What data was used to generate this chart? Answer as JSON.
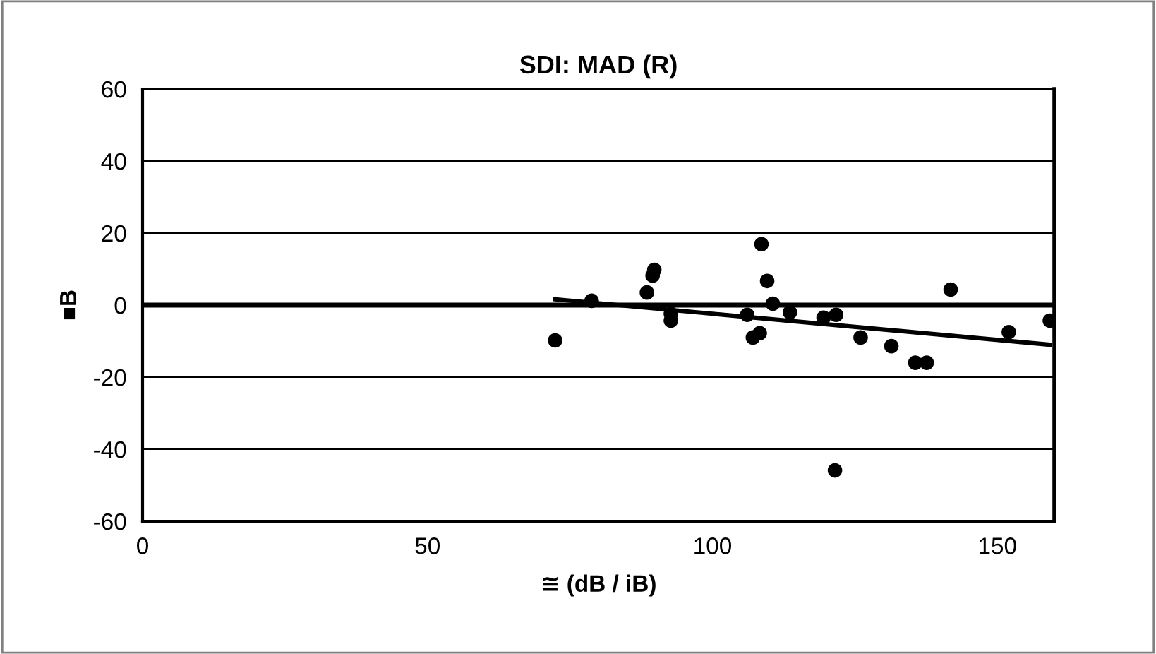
{
  "chart_data": {
    "type": "scatter",
    "title": "SDI: MAD (R)",
    "xlabel": "≅ (dB / iB)",
    "ylabel": "■B",
    "x": [
      72.4,
      78.8,
      88.5,
      89.5,
      89.8,
      92.7,
      92.7,
      106.1,
      107.1,
      108.3,
      108.6,
      109.6,
      110.6,
      113.6,
      119.5,
      121.7,
      121.5,
      126,
      131.4,
      135.6,
      137.6,
      141.8,
      152,
      159.2
    ],
    "series": [
      {
        "color": "#000000",
        "marker": "circle",
        "values": [
          -9.8,
          1.2,
          3.5,
          8.2,
          9.8,
          -2.4,
          -4.3,
          -2.7,
          -9,
          -7.8,
          16.9,
          6.7,
          0.4,
          -2,
          -3.5,
          -2.7,
          -45.9,
          -9,
          -11.4,
          -16,
          -16,
          4.3,
          -7.5,
          -4.3
        ]
      },
      {
        "color": "#000000",
        "type": "line",
        "marker": "none",
        "x": [
          72.4,
          159.2
        ],
        "values": [
          1.6,
          -11
        ]
      }
    ],
    "ref_lines": [
      {
        "axis": "y",
        "value": 0,
        "color": "#000000"
      }
    ],
    "xlim": [
      0,
      160
    ],
    "ylim": [
      -60,
      60
    ],
    "xticks": [
      0,
      50,
      100,
      150
    ],
    "yticks": [
      -60,
      -40,
      -20,
      0,
      20,
      40,
      60
    ],
    "grid": "y",
    "legend": false
  }
}
